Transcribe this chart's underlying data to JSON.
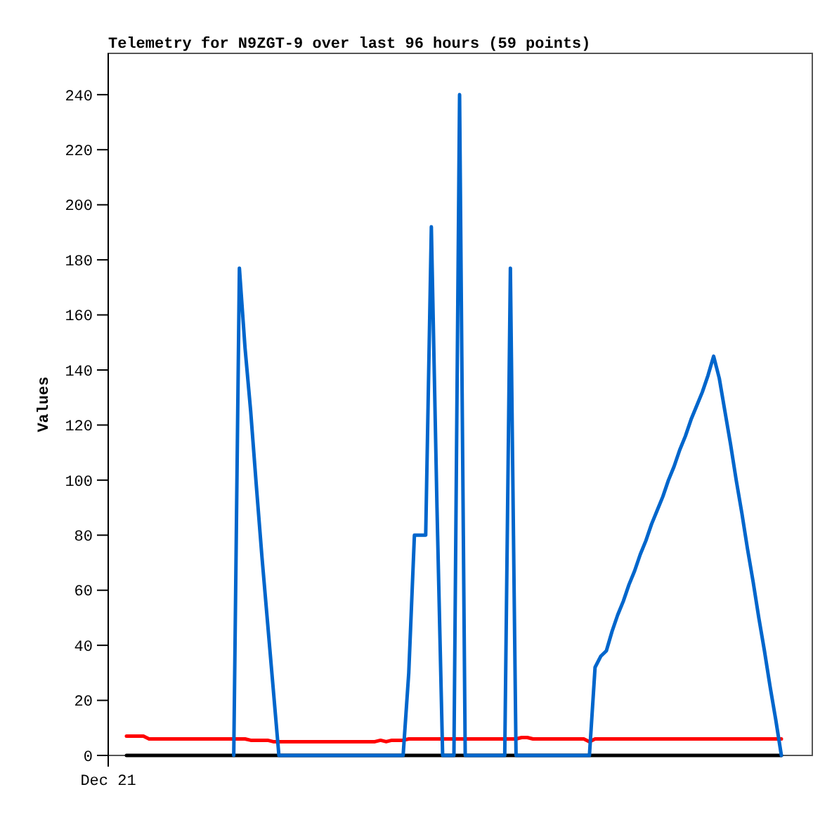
{
  "chart_data": {
    "type": "line",
    "title": "Telemetry for N9ZGT-9 over last 96 hours (59 points)",
    "ylabel": "Values",
    "annotations": [
      "Dec 21"
    ],
    "ylim": [
      0,
      255
    ],
    "yticks": [
      0,
      20,
      40,
      60,
      80,
      100,
      120,
      140,
      160,
      180,
      200,
      220,
      240
    ],
    "marker": "none",
    "line_style": "solid",
    "categories": [
      null,
      null,
      null,
      null,
      null,
      null,
      null,
      null,
      null,
      null,
      null,
      null,
      null,
      null,
      null,
      null,
      null,
      null,
      null,
      null,
      null,
      null,
      null,
      null,
      null,
      null,
      null,
      null,
      null,
      null,
      null,
      null,
      null,
      null,
      null,
      null,
      null,
      null,
      null,
      null,
      null,
      null,
      null,
      null,
      null,
      null,
      null,
      null,
      null,
      null,
      null,
      null,
      null,
      null,
      null,
      null,
      null,
      null,
      null,
      null,
      null,
      null,
      null,
      null,
      null,
      null,
      null,
      null,
      null,
      null,
      null,
      null,
      null,
      null,
      null,
      null,
      null,
      null,
      null,
      null,
      null,
      null,
      null,
      null,
      null,
      null,
      null,
      null,
      null,
      null,
      null,
      null,
      null,
      null,
      null,
      null,
      null,
      null,
      null,
      null,
      null,
      null,
      null,
      null,
      null,
      null,
      null,
      null,
      null,
      null,
      null,
      null,
      null,
      null,
      null,
      null,
      null
    ],
    "series": [
      {
        "color": "#000000",
        "values": [
          0,
          0,
          0,
          0,
          0,
          0,
          0,
          0,
          0,
          0,
          0,
          0,
          0,
          0,
          0,
          0,
          0,
          0,
          0,
          0,
          0,
          0,
          0,
          0,
          0,
          0,
          0,
          0,
          0,
          0,
          0,
          0,
          0,
          0,
          0,
          0,
          0,
          0,
          0,
          0,
          0,
          0,
          0,
          0,
          0,
          0,
          0,
          0,
          0,
          0,
          0,
          0,
          0,
          0,
          0,
          0,
          0,
          0,
          0,
          0,
          0,
          0,
          0,
          0,
          0,
          0,
          0,
          0,
          0,
          0,
          0,
          0,
          0,
          0,
          0,
          0,
          0,
          0,
          0,
          0,
          0,
          0,
          0,
          0,
          0,
          0,
          0,
          0,
          0,
          0,
          0,
          0,
          0,
          0,
          0,
          0,
          0,
          0,
          0,
          0,
          0,
          0,
          0,
          0,
          0,
          0,
          0,
          0,
          0,
          0,
          0,
          0,
          0,
          0,
          0,
          0,
          0
        ]
      },
      {
        "color": "#ff0000",
        "values": [
          7,
          7,
          7,
          7,
          6,
          6,
          6,
          6,
          6,
          6,
          6,
          6,
          6,
          6,
          6,
          6,
          6,
          6,
          6,
          6,
          6,
          6,
          5.5,
          5.5,
          5.5,
          5.5,
          5,
          5,
          5,
          5,
          5,
          5,
          5,
          5,
          5,
          5,
          5,
          5,
          5,
          5,
          5,
          5,
          5,
          5,
          5,
          5.5,
          5,
          5.5,
          5.5,
          5.5,
          6,
          6,
          6,
          6,
          6,
          6,
          6,
          6,
          6,
          6,
          6,
          6,
          6,
          6,
          6,
          6,
          6,
          6,
          6,
          6,
          6.5,
          6.5,
          6,
          6,
          6,
          6,
          6,
          6,
          6,
          6,
          6,
          6,
          5,
          6,
          6,
          6,
          6,
          6,
          6,
          6,
          6,
          6,
          6,
          6,
          6,
          6,
          6,
          6,
          6,
          6,
          6,
          6,
          6,
          6,
          6,
          6,
          6,
          6,
          6,
          6,
          6,
          6,
          6,
          6,
          6,
          6,
          6
        ]
      },
      {
        "color": "#0066cc",
        "values": [
          null,
          null,
          null,
          null,
          null,
          null,
          null,
          null,
          null,
          null,
          null,
          null,
          null,
          null,
          null,
          null,
          null,
          null,
          null,
          0,
          177,
          148,
          125,
          98,
          72,
          48,
          24,
          0,
          0,
          0,
          0,
          0,
          0,
          0,
          0,
          0,
          0,
          0,
          0,
          0,
          0,
          0,
          0,
          0,
          0,
          0,
          0,
          0,
          0,
          0,
          30,
          80,
          80,
          80,
          192,
          90,
          0,
          0,
          0,
          240,
          0,
          0,
          0,
          0,
          0,
          0,
          0,
          0,
          177,
          0,
          0,
          0,
          0,
          0,
          0,
          0,
          0,
          0,
          0,
          0,
          0,
          0,
          0,
          32,
          36,
          38,
          45,
          51,
          56,
          62,
          67,
          73,
          78,
          84,
          89,
          94,
          100,
          105,
          111,
          116,
          122,
          127,
          132,
          138,
          145,
          137,
          125,
          113,
          100,
          88,
          75,
          63,
          50,
          38,
          25,
          13,
          0
        ]
      }
    ]
  }
}
